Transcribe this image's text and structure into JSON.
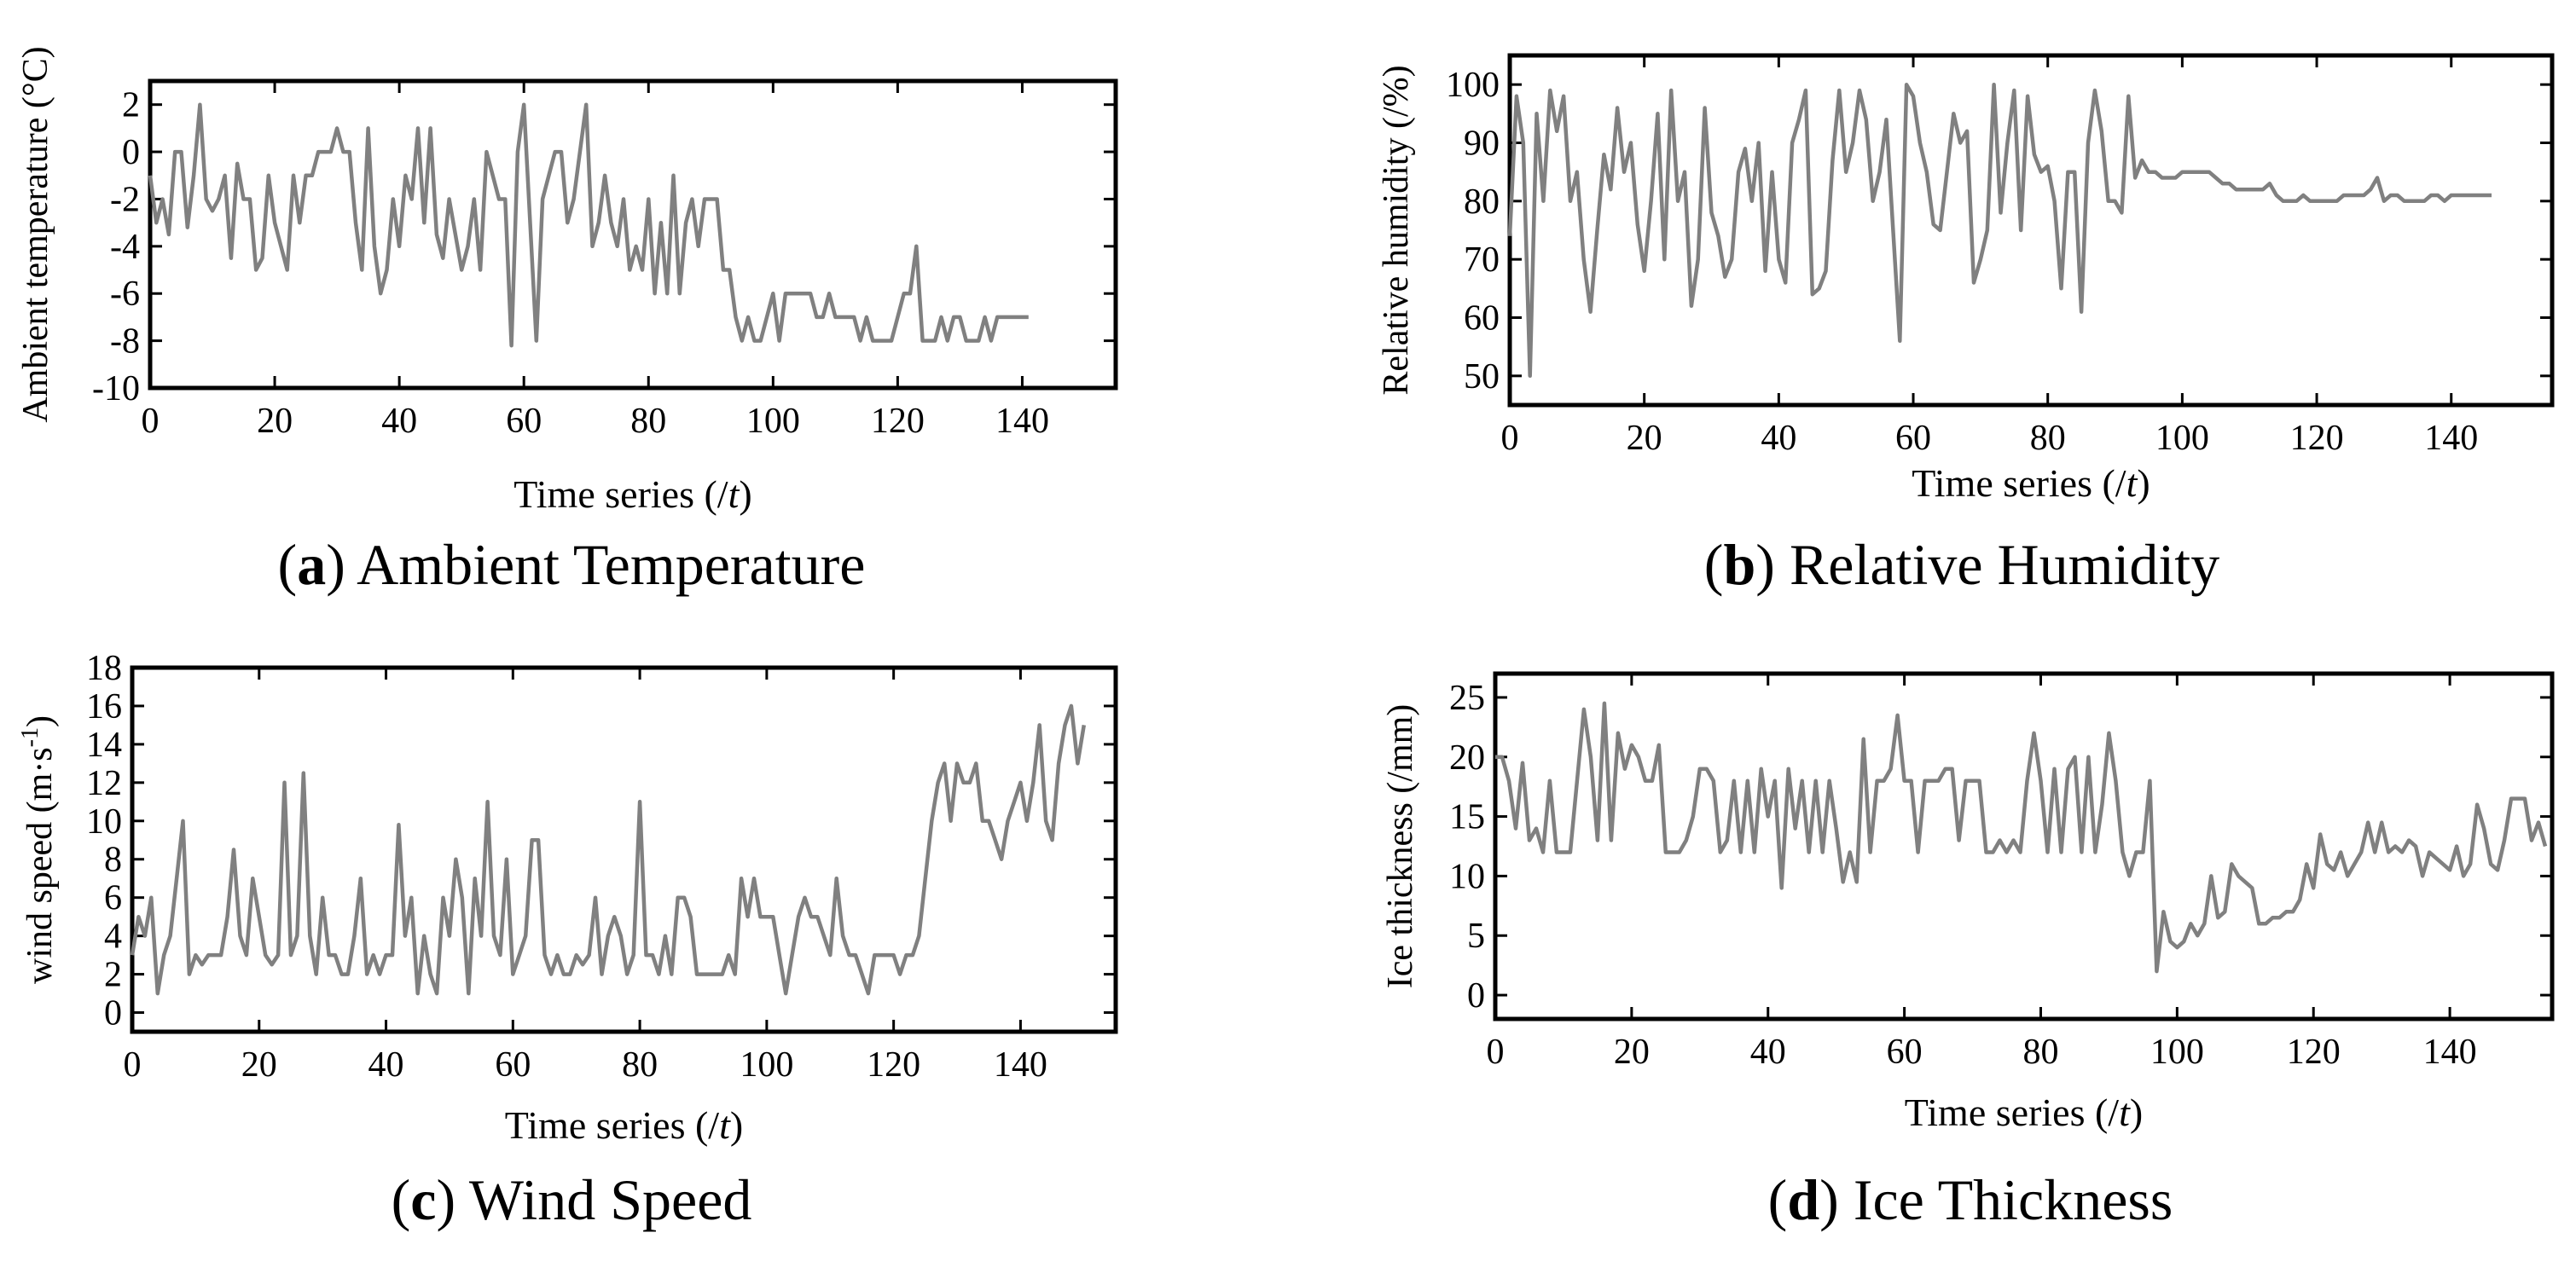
{
  "chart_data": [
    {
      "id": "a",
      "type": "line",
      "title": "Ambient Temperature",
      "caption_letter": "a",
      "xlabel_prefix": "Time series (/",
      "xlabel_var": "t",
      "xlabel_suffix": ")",
      "ylabel": "Ambient temperature (°C)",
      "xlim": [
        0,
        155
      ],
      "ylim": [
        -10,
        3
      ],
      "xticks": [
        0,
        20,
        40,
        60,
        80,
        100,
        120,
        140
      ],
      "yticks": [
        -10,
        -8,
        -6,
        -4,
        -2,
        0,
        2
      ],
      "ytick_labels": [
        "-10",
        "-8",
        "-6",
        "-4",
        "-2",
        "0",
        "2"
      ],
      "line_color": "#808080",
      "series": [
        {
          "name": "Ambient temperature",
          "values": [
            -1,
            -3,
            -2,
            -3.5,
            0,
            0,
            -3.2,
            -1,
            2,
            -2,
            -2.5,
            -2,
            -1,
            -4.5,
            -0.5,
            -2,
            -2,
            -5,
            -4.5,
            -1,
            -3,
            -4,
            -5,
            -1,
            -3,
            -1,
            -1,
            0,
            0,
            0,
            1,
            0,
            0,
            -3,
            -5,
            1,
            -4,
            -6,
            -5,
            -2,
            -4,
            -1,
            -2,
            1,
            -3,
            1,
            -3.5,
            -4.5,
            -2,
            -3.5,
            -5,
            -4,
            -2,
            -5,
            0,
            -1,
            -2,
            -2,
            -8.2,
            0,
            2,
            -3,
            -8,
            -2,
            -1,
            0,
            0,
            -3,
            -2,
            0,
            2,
            -4,
            -3,
            -1,
            -3,
            -4,
            -2,
            -5,
            -4,
            -5,
            -2,
            -6,
            -3,
            -6,
            -1,
            -6,
            -3,
            -2,
            -4,
            -2,
            -2,
            -2,
            -5,
            -5,
            -7,
            -8,
            -7,
            -8,
            -8,
            -7,
            -6,
            -8,
            -6,
            -6,
            -6,
            -6,
            -6,
            -7,
            -7,
            -6,
            -7,
            -7,
            -7,
            -7,
            -8,
            -7,
            -8,
            -8,
            -8,
            -8,
            -7,
            -6,
            -6,
            -4,
            -8,
            -8,
            -8,
            -7,
            -8,
            -7,
            -7,
            -8,
            -8,
            -8,
            -7,
            -8,
            -7,
            -7,
            -7,
            -7,
            -7,
            -7
          ]
        }
      ]
    },
    {
      "id": "b",
      "type": "line",
      "title": "Relative Humidity",
      "caption_letter": "b",
      "xlabel_prefix": "Time series (/",
      "xlabel_var": "t",
      "xlabel_suffix": ")",
      "ylabel": "Relative humidity (/%)",
      "xlim": [
        0,
        155
      ],
      "ylim": [
        45,
        105
      ],
      "xticks": [
        0,
        20,
        40,
        60,
        80,
        100,
        120,
        140
      ],
      "yticks": [
        50,
        60,
        70,
        80,
        90,
        100
      ],
      "ytick_labels": [
        "50",
        "60",
        "70",
        "80",
        "90",
        "100"
      ],
      "line_color": "#808080",
      "series": [
        {
          "name": "Relative humidity",
          "values": [
            74,
            98,
            90,
            50,
            95,
            80,
            99,
            92,
            98,
            80,
            85,
            70,
            61,
            75,
            88,
            82,
            96,
            85,
            90,
            76,
            68,
            80,
            95,
            70,
            99,
            80,
            85,
            62,
            70,
            96,
            78,
            74,
            67,
            70,
            85,
            89,
            80,
            90,
            68,
            85,
            70,
            66,
            90,
            94,
            99,
            64,
            65,
            68,
            87,
            99,
            85,
            90,
            99,
            94,
            80,
            85,
            94,
            75,
            56,
            100,
            98,
            90,
            85,
            76,
            75,
            85,
            95,
            90,
            92,
            66,
            70,
            75,
            100,
            78,
            90,
            99,
            75,
            98,
            88,
            85,
            86,
            80,
            65,
            85,
            85,
            61,
            90,
            99,
            92,
            80,
            80,
            78,
            98,
            84,
            87,
            85,
            85,
            84,
            84,
            84,
            85,
            85,
            85,
            85,
            85,
            84,
            83,
            83,
            82,
            82,
            82,
            82,
            82,
            83,
            81,
            80,
            80,
            80,
            81,
            80,
            80,
            80,
            80,
            80,
            81,
            81,
            81,
            81,
            82,
            84,
            80,
            81,
            81,
            80,
            80,
            80,
            80,
            81,
            81,
            80,
            81,
            81,
            81,
            81,
            81,
            81,
            81
          ]
        }
      ]
    },
    {
      "id": "c",
      "type": "line",
      "title": "Wind Speed",
      "caption_letter": "c",
      "xlabel_prefix": "Time series (/",
      "xlabel_var": "t",
      "xlabel_suffix": ")",
      "ylabel": "wind speed (m·s",
      "ylabel_sup": "-1",
      "ylabel_end": ")",
      "xlim": [
        0,
        155
      ],
      "ylim": [
        -1,
        18
      ],
      "xticks": [
        0,
        20,
        40,
        60,
        80,
        100,
        120,
        140
      ],
      "yticks": [
        0,
        2,
        4,
        6,
        8,
        10,
        12,
        14,
        16,
        18
      ],
      "ytick_labels": [
        "0",
        "2",
        "4",
        "6",
        "8",
        "10",
        "12",
        "14",
        "16",
        "18"
      ],
      "line_color": "#808080",
      "series": [
        {
          "name": "Wind speed",
          "values": [
            3,
            5,
            4,
            6,
            1,
            3,
            4,
            7,
            10,
            2,
            3,
            2.5,
            3,
            3,
            3,
            5,
            8.5,
            4,
            3,
            7,
            5,
            3,
            2.5,
            3,
            12,
            3,
            4,
            12.5,
            4,
            2,
            6,
            3,
            3,
            2,
            2,
            4,
            7,
            2,
            3,
            2,
            3,
            3,
            9.8,
            4,
            6,
            1,
            4,
            2,
            1,
            6,
            4,
            8,
            6,
            1,
            7,
            4,
            11,
            4,
            3,
            8,
            2,
            3,
            4,
            9,
            9,
            3,
            2,
            3,
            2,
            2,
            3,
            2.5,
            3,
            6,
            2,
            4,
            5,
            4,
            2,
            3,
            11,
            3,
            3,
            2,
            4,
            2,
            6,
            6,
            5,
            2,
            2,
            2,
            2,
            2,
            3,
            2,
            7,
            5,
            7,
            5,
            5,
            5,
            3,
            1,
            3,
            5,
            6,
            5,
            5,
            4,
            3,
            7,
            4,
            3,
            3,
            2,
            1,
            3,
            3,
            3,
            3,
            2,
            3,
            3,
            4,
            7,
            10,
            12,
            13,
            10,
            13,
            12,
            12,
            13,
            10,
            10,
            9,
            8,
            10,
            11,
            12,
            10,
            12,
            15,
            10,
            9,
            13,
            15,
            16,
            13,
            15
          ]
        }
      ]
    },
    {
      "id": "d",
      "type": "line",
      "title": "Ice Thickness",
      "caption_letter": "d",
      "xlabel_prefix": "Time series (/",
      "xlabel_var": "t",
      "xlabel_suffix": ")",
      "ylabel": "Ice thickness (/mm)",
      "xlim": [
        0,
        155
      ],
      "ylim": [
        -2,
        27
      ],
      "xticks": [
        0,
        20,
        40,
        60,
        80,
        100,
        120,
        140
      ],
      "yticks": [
        0,
        5,
        10,
        15,
        20,
        25
      ],
      "ytick_labels": [
        "0",
        "5",
        "10",
        "15",
        "20",
        "25"
      ],
      "line_color": "#808080",
      "series": [
        {
          "name": "Ice thickness",
          "values": [
            20,
            20,
            18,
            14,
            19.5,
            13,
            14,
            12,
            18,
            12,
            12,
            12,
            18,
            24,
            20,
            13,
            24.5,
            13,
            22,
            19,
            21,
            20,
            18,
            18,
            21,
            12,
            12,
            12,
            13,
            15,
            19,
            19,
            18,
            12,
            13,
            18,
            12,
            18,
            12,
            19,
            15,
            18,
            9,
            19,
            14,
            18,
            12,
            18,
            12,
            18,
            14,
            9.5,
            12,
            9.5,
            21.5,
            12,
            18,
            18,
            19,
            23.5,
            18,
            18,
            12,
            18,
            18,
            18,
            19,
            19,
            13,
            18,
            18,
            18,
            12,
            12,
            13,
            12,
            13,
            12,
            18,
            22,
            18,
            12,
            19,
            12,
            19,
            20,
            12,
            20,
            12,
            16,
            22,
            18,
            12,
            10,
            12,
            12,
            18,
            2,
            7,
            4.5,
            4,
            4.5,
            6,
            5,
            6,
            10,
            6.5,
            7,
            11,
            10,
            9.5,
            9,
            6,
            6,
            6.5,
            6.5,
            7,
            7,
            8,
            11,
            9,
            13.5,
            11,
            10.5,
            12,
            10,
            11,
            12,
            14.5,
            12,
            14.5,
            12,
            12.5,
            12,
            13,
            12.5,
            10,
            12,
            11.5,
            11,
            10.5,
            12.5,
            10,
            11,
            16,
            14,
            11,
            10.5,
            13,
            16.5,
            16.5,
            16.5,
            13,
            14.5,
            12.5
          ]
        }
      ]
    }
  ]
}
